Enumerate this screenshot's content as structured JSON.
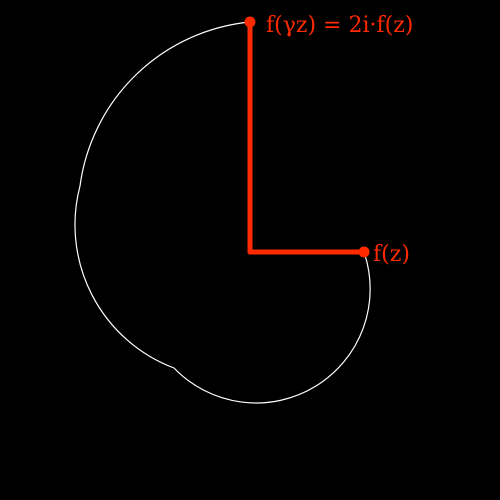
{
  "diagram": {
    "background_color": "#000000",
    "accent_color": "#ff2a00",
    "curve_color": "#ffffff",
    "label_fz": "f(z)",
    "label_fgz": "f(γz) = 2i·f(z)",
    "rotation_degrees": 90,
    "scale_factor": 2
  }
}
